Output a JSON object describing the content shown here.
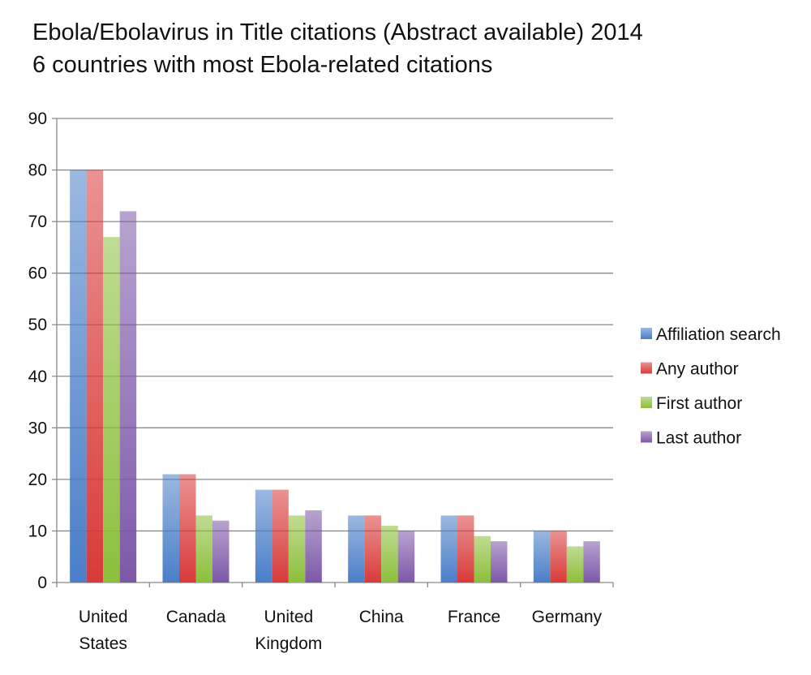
{
  "chart_data": {
    "type": "bar",
    "title": "Ebola/Ebolavirus in Title citations (Abstract available) 2014",
    "subtitle": "6 countries with most Ebola-related citations",
    "categories": [
      [
        "United",
        "States"
      ],
      [
        "Canada"
      ],
      [
        "United",
        "Kingdom"
      ],
      [
        "China"
      ],
      [
        "France"
      ],
      [
        "Germany"
      ]
    ],
    "series": [
      {
        "name": "Affiliation search",
        "color": "#4a7ec8",
        "values": [
          80,
          21,
          18,
          13,
          13,
          10
        ]
      },
      {
        "name": "Any author",
        "color": "#d93a3a",
        "values": [
          80,
          21,
          18,
          13,
          13,
          10
        ]
      },
      {
        "name": "First author",
        "color": "#8cbf3a",
        "values": [
          67,
          13,
          13,
          11,
          9,
          7
        ]
      },
      {
        "name": "Last author",
        "color": "#7e58a8",
        "values": [
          72,
          12,
          14,
          10,
          8,
          8
        ]
      }
    ],
    "ylim": [
      0,
      90
    ],
    "yticks": [
      0,
      10,
      20,
      30,
      40,
      50,
      60,
      70,
      80,
      90
    ],
    "grid": true,
    "legend": "right"
  }
}
